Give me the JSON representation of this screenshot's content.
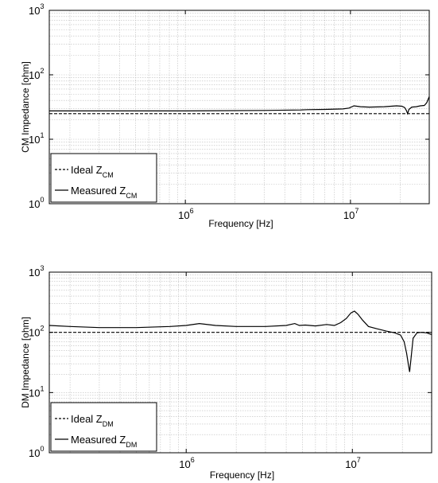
{
  "chart_data": [
    {
      "type": "line",
      "xlabel": "Frequency [Hz]",
      "ylabel": "CM Impedance [ohm]",
      "xscale": "log",
      "yscale": "log",
      "xlim": [
        150000,
        30000000
      ],
      "ylim": [
        1,
        1000
      ],
      "grid": true,
      "legend_position": "lower-left",
      "xticks": [
        {
          "value": 1000000,
          "base": "10",
          "exp": "6"
        },
        {
          "value": 10000000,
          "base": "10",
          "exp": "7"
        }
      ],
      "yticks": [
        {
          "value": 1,
          "base": "10",
          "exp": "0"
        },
        {
          "value": 10,
          "base": "10",
          "exp": "1"
        },
        {
          "value": 100,
          "base": "10",
          "exp": "2"
        },
        {
          "value": 1000,
          "base": "10",
          "exp": "3"
        }
      ],
      "series": [
        {
          "name": "Ideal Z",
          "sub": "CM",
          "style": "dashed",
          "x": [
            150000,
            30000000
          ],
          "y": [
            25,
            25
          ]
        },
        {
          "name": "Measured Z",
          "sub": "CM",
          "style": "solid",
          "x": [
            150000,
            300000,
            1000000,
            3000000,
            5000000,
            5500000,
            7000000,
            9000000,
            9800000,
            10500000,
            11500000,
            13000000,
            16000000,
            19000000,
            20500000,
            21300000,
            21800000,
            22200000,
            22600000,
            23500000,
            25000000,
            26500000,
            28000000,
            29000000,
            30000000
          ],
          "y": [
            27.5,
            27.5,
            27.5,
            28,
            28.5,
            28.8,
            29,
            29.5,
            30.5,
            33,
            32,
            31.5,
            32,
            33,
            32.5,
            31,
            28,
            25,
            29,
            31.5,
            32,
            33,
            33.5,
            37,
            46
          ]
        }
      ]
    },
    {
      "type": "line",
      "xlabel": "Frequency [Hz]",
      "ylabel": "DM Impedance [ohm]",
      "xscale": "log",
      "yscale": "log",
      "xlim": [
        150000,
        30000000
      ],
      "ylim": [
        1,
        1000
      ],
      "grid": true,
      "legend_position": "lower-left",
      "xticks": [
        {
          "value": 1000000,
          "base": "10",
          "exp": "6"
        },
        {
          "value": 10000000,
          "base": "10",
          "exp": "7"
        }
      ],
      "yticks": [
        {
          "value": 1,
          "base": "10",
          "exp": "0"
        },
        {
          "value": 10,
          "base": "10",
          "exp": "1"
        },
        {
          "value": 100,
          "base": "10",
          "exp": "2"
        },
        {
          "value": 1000,
          "base": "10",
          "exp": "3"
        }
      ],
      "series": [
        {
          "name": "Ideal Z",
          "sub": "DM",
          "style": "dashed",
          "x": [
            150000,
            30000000
          ],
          "y": [
            100,
            100
          ]
        },
        {
          "name": "Measured Z",
          "sub": "DM",
          "style": "solid",
          "x": [
            150000,
            200000,
            300000,
            500000,
            800000,
            1000000,
            1200000,
            1500000,
            2000000,
            3000000,
            4000000,
            4500000,
            4800000,
            5200000,
            6000000,
            7000000,
            7800000,
            8500000,
            9200000,
            9800000,
            10300000,
            10800000,
            11500000,
            12500000,
            14000000,
            16000000,
            18000000,
            19500000,
            20500000,
            21200000,
            21700000,
            22100000,
            22500000,
            23200000,
            24500000,
            26000000,
            28000000,
            30000000
          ],
          "y": [
            130,
            125,
            120,
            120,
            125,
            130,
            140,
            130,
            125,
            125,
            130,
            140,
            130,
            132,
            128,
            135,
            130,
            145,
            170,
            210,
            225,
            200,
            160,
            125,
            115,
            105,
            98,
            90,
            70,
            45,
            30,
            22,
            35,
            80,
            98,
            100,
            98,
            92
          ]
        }
      ]
    }
  ]
}
